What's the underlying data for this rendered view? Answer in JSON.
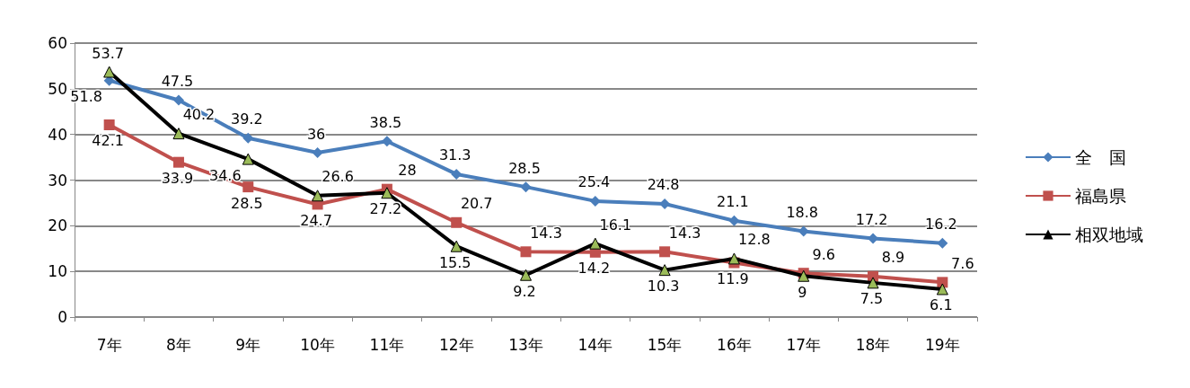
{
  "chart_data": {
    "type": "line",
    "categories": [
      "7年",
      "8年",
      "9年",
      "10年",
      "11年",
      "12年",
      "13年",
      "14年",
      "15年",
      "16年",
      "17年",
      "18年",
      "19年"
    ],
    "series": [
      {
        "name": "全　国",
        "color": "#4a7ebb",
        "marker": "diamond",
        "values": [
          51.8,
          47.5,
          39.2,
          36,
          38.5,
          31.3,
          28.5,
          25.4,
          24.8,
          21.1,
          18.8,
          17.2,
          16.2
        ]
      },
      {
        "name": "福島県",
        "color": "#c0504d",
        "marker": "square",
        "values": [
          42.1,
          33.9,
          28.5,
          24.7,
          28,
          20.7,
          14.3,
          14.2,
          14.3,
          11.9,
          9.6,
          8.9,
          7.6
        ]
      },
      {
        "name": "相双地域",
        "color": "#000000",
        "marker": "triangle",
        "colors": [
          "#9bbb59",
          "#9bbb59",
          "#9bbb59",
          "#9bbb59",
          "#9bbb59",
          "#9bbb59",
          "#9bbb59",
          "#9bbb59",
          "#9bbb59",
          "#9bbb59",
          "#9bbb59",
          "#9bbb59",
          "#9bbb59"
        ],
        "values": [
          53.7,
          40.2,
          34.6,
          26.6,
          27.2,
          15.5,
          9.2,
          16.1,
          10.3,
          12.8,
          9,
          7.5,
          6.1
        ]
      }
    ],
    "ylim": [
      0,
      60
    ],
    "yticks": [
      0,
      10,
      20,
      30,
      40,
      50,
      60
    ],
    "grid": "y",
    "legend": "right",
    "data_labels": true
  }
}
